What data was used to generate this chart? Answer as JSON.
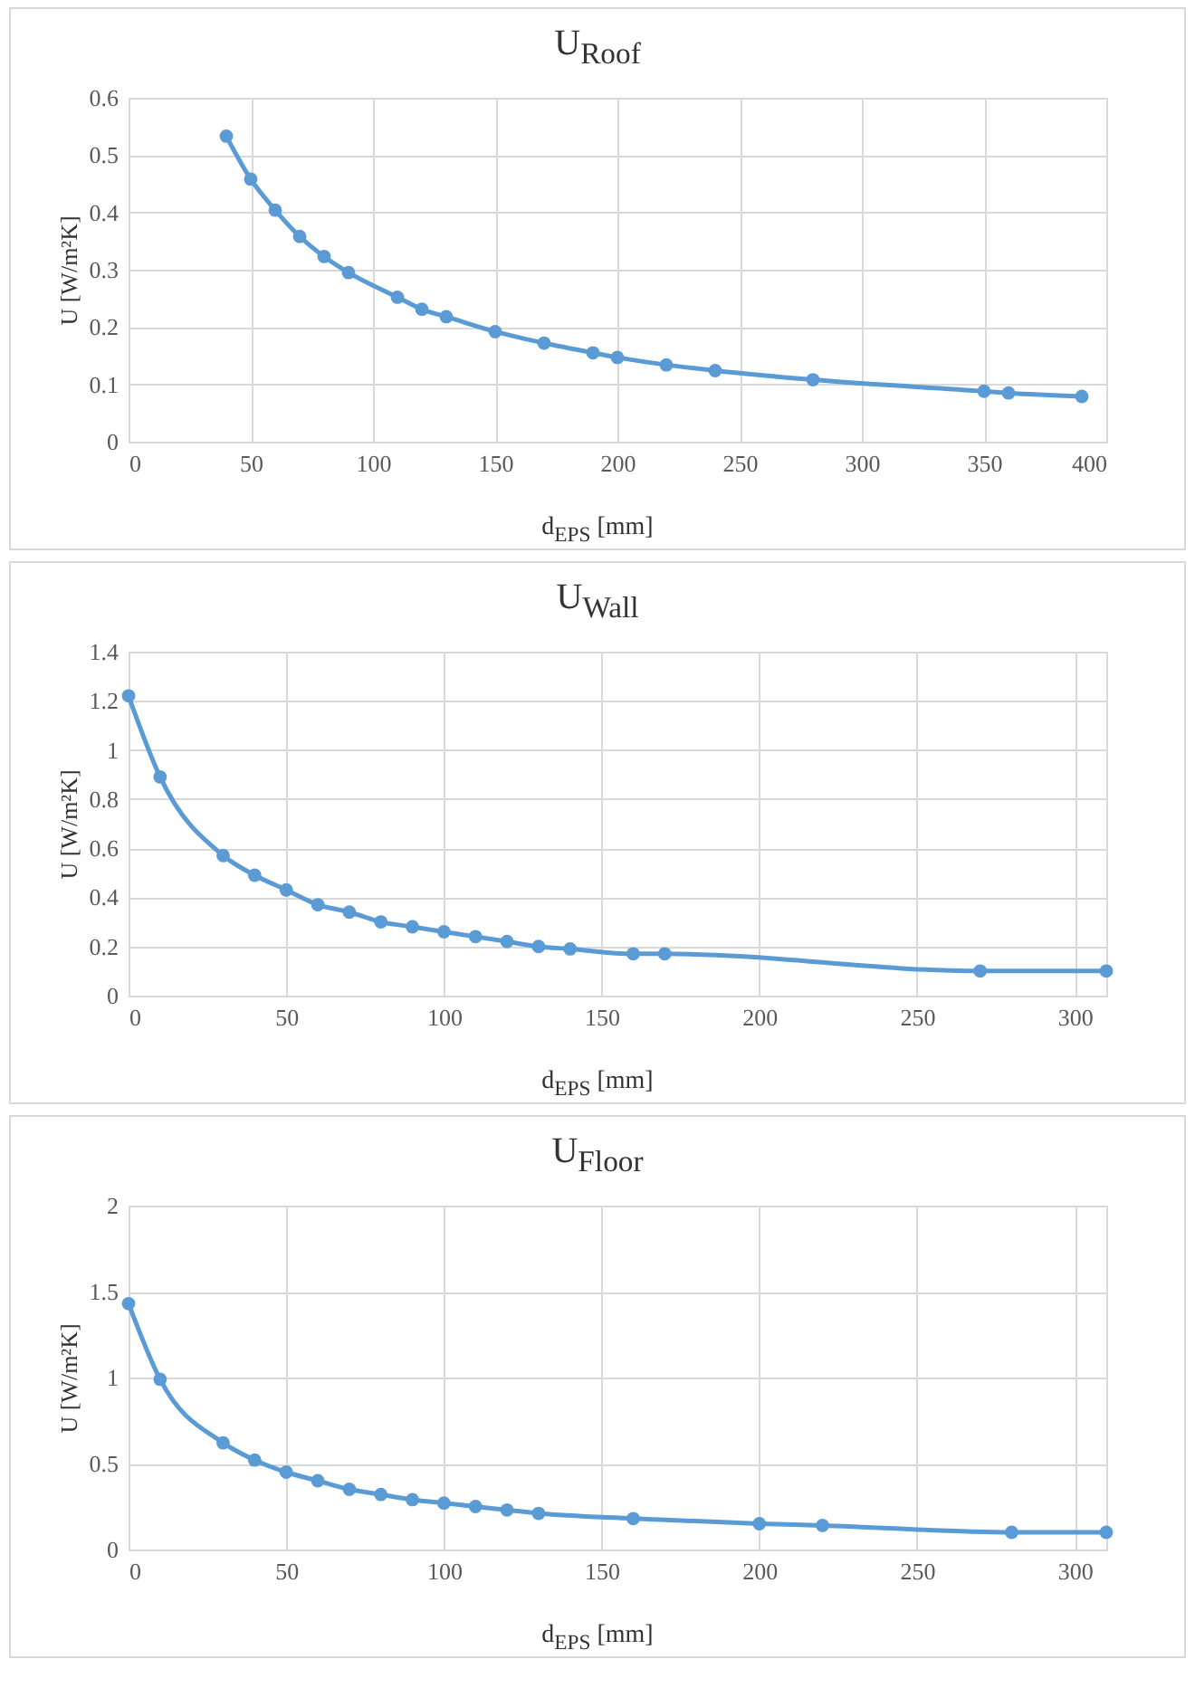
{
  "chart_data": [
    {
      "type": "line",
      "title": "U$_{Roof}$",
      "xlabel": "d$_{EPS}$ [mm]",
      "ylabel": "U [W/m²K]",
      "x": [
        40,
        50,
        60,
        70,
        80,
        90,
        110,
        120,
        130,
        150,
        170,
        190,
        200,
        220,
        240,
        280,
        350,
        360,
        390
      ],
      "series": [
        {
          "color": "#5b9bd5",
          "values": [
            0.533,
            0.458,
            0.404,
            0.358,
            0.323,
            0.295,
            0.252,
            0.231,
            0.218,
            0.192,
            0.172,
            0.155,
            0.147,
            0.134,
            0.124,
            0.108,
            0.088,
            0.085,
            0.079
          ]
        }
      ],
      "xlim": [
        0,
        400
      ],
      "xticks": [
        0,
        50,
        100,
        150,
        200,
        250,
        300,
        350,
        400
      ],
      "ylim": [
        0,
        0.6
      ],
      "yticks": [
        0,
        0.1,
        0.2,
        0.3,
        0.4,
        0.5,
        0.6
      ],
      "grid": true,
      "marker": "circle"
    },
    {
      "type": "line",
      "title": "U$_{Wall}$",
      "xlabel": "d$_{EPS}$ [mm]",
      "ylabel": "U [W/m²K]",
      "x": [
        0,
        10,
        30,
        40,
        50,
        60,
        70,
        80,
        90,
        100,
        110,
        120,
        130,
        140,
        160,
        170,
        270,
        310
      ],
      "series": [
        {
          "color": "#5b9bd5",
          "values": [
            1.22,
            0.89,
            0.57,
            0.49,
            0.43,
            0.37,
            0.34,
            0.3,
            0.28,
            0.26,
            0.24,
            0.22,
            0.2,
            0.19,
            0.17,
            0.17,
            0.1,
            0.1
          ]
        }
      ],
      "xlim": [
        0,
        310
      ],
      "xticks": [
        0,
        50,
        100,
        150,
        200,
        250,
        300
      ],
      "ylim": [
        0,
        1.4
      ],
      "yticks": [
        0,
        0.2,
        0.4,
        0.6,
        0.8,
        1,
        1.2,
        1.4
      ],
      "grid": true,
      "marker": "circle"
    },
    {
      "type": "line",
      "title": "U$_{Floor}$",
      "xlabel": "d$_{EPS}$ [mm]",
      "ylabel": "U [W/m²K]",
      "x": [
        0,
        10,
        30,
        40,
        50,
        60,
        70,
        80,
        90,
        100,
        110,
        120,
        130,
        160,
        200,
        220,
        280,
        310
      ],
      "series": [
        {
          "color": "#5b9bd5",
          "values": [
            1.43,
            0.99,
            0.62,
            0.52,
            0.45,
            0.4,
            0.35,
            0.32,
            0.29,
            0.27,
            0.25,
            0.23,
            0.21,
            0.18,
            0.15,
            0.14,
            0.1,
            0.1
          ]
        }
      ],
      "xlim": [
        0,
        310
      ],
      "xticks": [
        0,
        50,
        100,
        150,
        200,
        250,
        300
      ],
      "ylim": [
        0,
        2
      ],
      "yticks": [
        0,
        0.5,
        1,
        1.5,
        2
      ],
      "grid": true,
      "marker": "circle"
    }
  ]
}
